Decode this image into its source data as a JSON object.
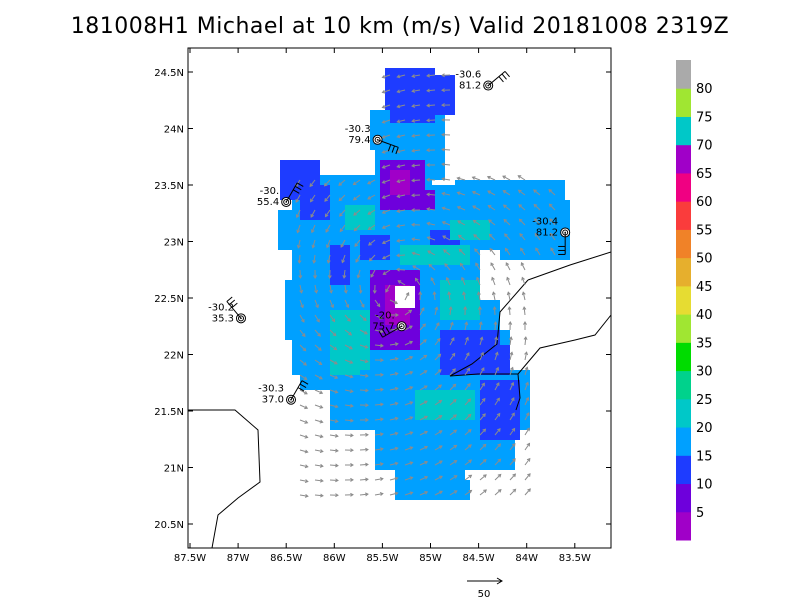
{
  "title": "181008H1 Michael at 10 km (m/s) Valid 20181008 2319Z",
  "map": {
    "lon_range": [
      -87.5,
      -83.1
    ],
    "lat_range": [
      20.3,
      24.6
    ],
    "lon_ticks": [
      "87.5W",
      "87W",
      "86.5W",
      "86W",
      "85.5W",
      "85W",
      "84.5W",
      "84W",
      "83.5W"
    ],
    "lat_ticks": [
      "20.5N",
      "21N",
      "21.5N",
      "22N",
      "22.5N",
      "23N",
      "23.5N",
      "24N",
      "24.5N"
    ]
  },
  "colorbar": {
    "labels": [
      "5",
      "10",
      "15",
      "20",
      "25",
      "30",
      "35",
      "40",
      "45",
      "50",
      "55",
      "60",
      "65",
      "70",
      "75",
      "80"
    ],
    "colors": [
      "#a000c8",
      "#6e00dc",
      "#1e3cff",
      "#00a0ff",
      "#00c8c8",
      "#00d28c",
      "#00dc00",
      "#a0e632",
      "#e6dc32",
      "#e6af2d",
      "#f08228",
      "#fa3c3c",
      "#f00082",
      "#a000c8",
      "#00c8c8",
      "#a0e632",
      "#aaaaaa"
    ]
  },
  "vector_scale": {
    "label": "50"
  },
  "dropsondes": [
    {
      "pressure": "-30.6",
      "speed": "81.2",
      "lon": -84.4,
      "lat": 24.38
    },
    {
      "pressure": "-30.3",
      "speed": "79.4",
      "lon": -85.55,
      "lat": 23.9
    },
    {
      "pressure": "-30.",
      "speed": "55.4",
      "lon": -86.5,
      "lat": 23.35
    },
    {
      "pressure": "-30.4",
      "speed": "81.2",
      "lon": -83.6,
      "lat": 23.08
    },
    {
      "pressure": "-30.2",
      "speed": "35.3",
      "lon": -86.97,
      "lat": 22.32
    },
    {
      "pressure": "-20.",
      "speed": "75.7",
      "lon": -85.3,
      "lat": 22.25
    },
    {
      "pressure": "-30.3",
      "speed": "37.0",
      "lon": -86.45,
      "lat": 21.6
    }
  ]
}
